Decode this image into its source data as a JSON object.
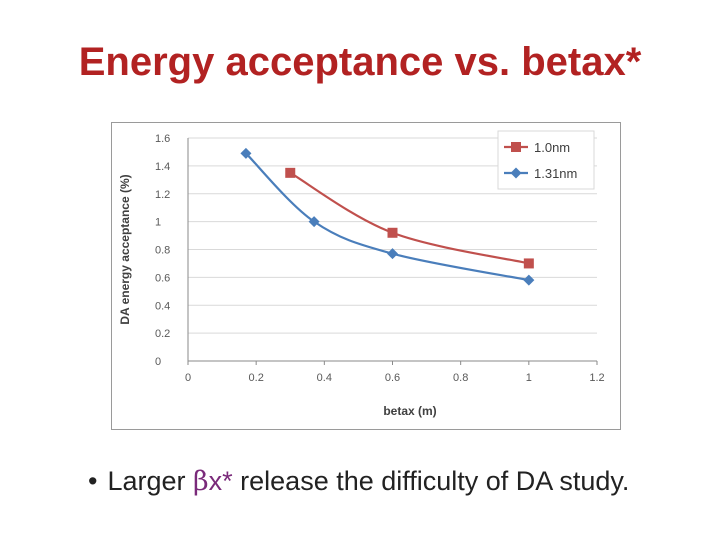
{
  "slide": {
    "title": "Energy acceptance vs. betax*",
    "bullet": {
      "marker": "•",
      "prefix": "Larger",
      "symbol": "β",
      "symbol_suffix": "x*",
      "rest": "release the difficulty of DA study."
    }
  },
  "colors": {
    "title": "#b22222",
    "series_1_0nm": "#c0504d",
    "series_1_31nm": "#4a7ebb",
    "grid": "#d9d9d9",
    "axis": "#8a8a8a"
  },
  "chart_data": {
    "type": "line",
    "title": "",
    "xlabel": "betax (m)",
    "ylabel": "DA energy acceptance (%)",
    "xlim": [
      0,
      1.2
    ],
    "ylim": [
      0,
      1.6
    ],
    "xticks": [
      0,
      0.2,
      0.4,
      0.6,
      0.8,
      1,
      1.2
    ],
    "xtick_labels": [
      "0",
      "0.2",
      "0.4",
      "0.6",
      "0.8",
      "1",
      "1.2"
    ],
    "yticks": [
      0,
      0.2,
      0.4,
      0.6,
      0.8,
      1,
      1.2,
      1.4,
      1.6
    ],
    "ytick_labels": [
      "0",
      "0.2",
      "0.4",
      "0.6",
      "0.8",
      "1",
      "1.2",
      "1.4",
      "1.6"
    ],
    "grid": true,
    "legend_position": "top-right",
    "series": [
      {
        "name": "1.0nm",
        "marker": "square",
        "color": "#c0504d",
        "x": [
          0.3,
          0.6,
          1.0
        ],
        "y": [
          1.35,
          0.92,
          0.7
        ]
      },
      {
        "name": "1.31nm",
        "marker": "diamond",
        "color": "#4a7ebb",
        "x": [
          0.17,
          0.37,
          0.6,
          1.0
        ],
        "y": [
          1.49,
          1.0,
          0.77,
          0.58
        ]
      }
    ]
  }
}
